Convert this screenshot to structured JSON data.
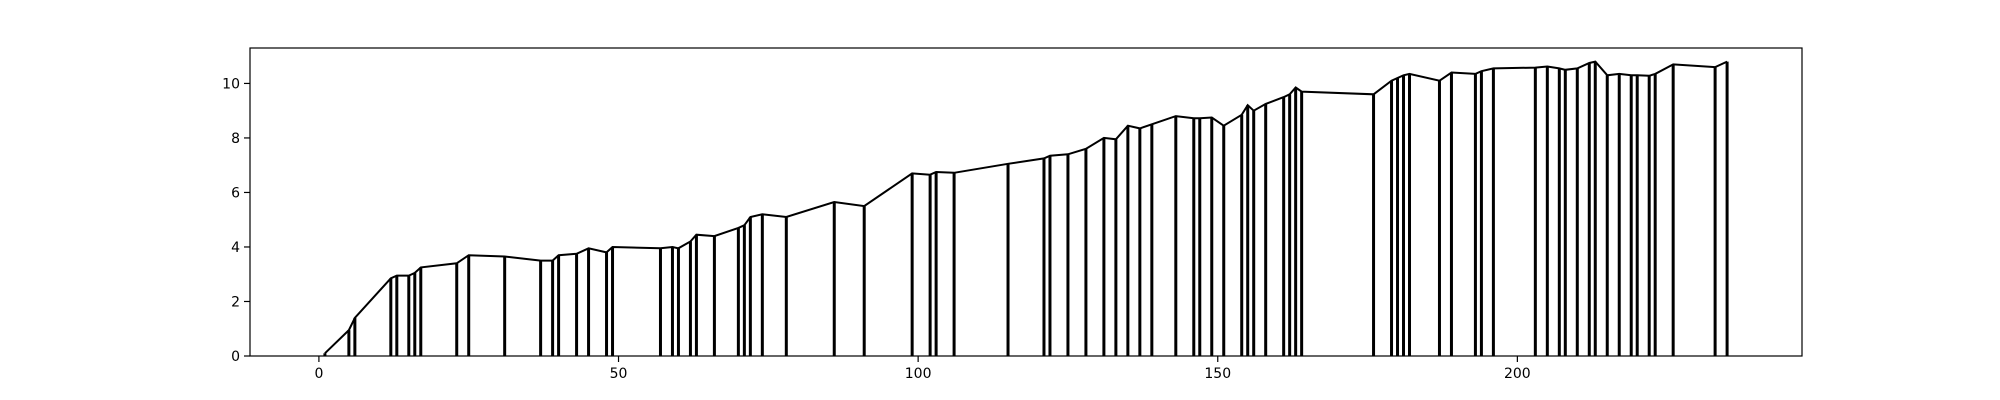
{
  "chart_data": {
    "type": "line",
    "title": "",
    "xlabel": "",
    "ylabel": "",
    "xlim": [
      -11.5,
      247.5
    ],
    "ylim": [
      0,
      11.3
    ],
    "x_ticks": [
      0,
      50,
      100,
      150,
      200
    ],
    "y_ticks": [
      0,
      2,
      4,
      6,
      8,
      10
    ],
    "x_tick_labels": [
      "0",
      "50",
      "100",
      "150",
      "200"
    ],
    "y_tick_labels": [
      "0",
      "2",
      "4",
      "6",
      "8",
      "10"
    ],
    "grid": false,
    "legend": "none",
    "line_color": "#000000",
    "vertical_drops": true,
    "series": [
      {
        "x": [
          1,
          5,
          6,
          12,
          13,
          15,
          16,
          17,
          23,
          25,
          31,
          37,
          39,
          40,
          43,
          45,
          48,
          49,
          57,
          59,
          60,
          62,
          63,
          66,
          70,
          71,
          72,
          74,
          78,
          86,
          91,
          99,
          102,
          103,
          106,
          115,
          121,
          122,
          125,
          128,
          131,
          133,
          135,
          137,
          139,
          143,
          146,
          147,
          149,
          151,
          154,
          155,
          156,
          158,
          161,
          162,
          163,
          164,
          176,
          179,
          180,
          181,
          182,
          187,
          189,
          193,
          194,
          196,
          203,
          205,
          207,
          208,
          210,
          212,
          213,
          215,
          217,
          219,
          220,
          222,
          223,
          226,
          233,
          235
        ],
        "y": [
          0.1,
          0.95,
          1.4,
          2.85,
          2.95,
          2.95,
          3.05,
          3.25,
          3.4,
          3.7,
          3.65,
          3.5,
          3.5,
          3.7,
          3.75,
          3.95,
          3.8,
          4.0,
          3.95,
          4.0,
          3.95,
          4.2,
          4.45,
          4.4,
          4.7,
          4.8,
          5.1,
          5.2,
          5.1,
          5.65,
          5.5,
          6.7,
          6.65,
          6.75,
          6.72,
          7.05,
          7.25,
          7.35,
          7.4,
          7.6,
          8.0,
          7.95,
          8.45,
          8.35,
          8.5,
          8.8,
          8.72,
          8.72,
          8.75,
          8.45,
          8.85,
          9.2,
          9.0,
          9.25,
          9.5,
          9.6,
          9.85,
          9.7,
          9.6,
          10.1,
          10.2,
          10.3,
          10.35,
          10.1,
          10.4,
          10.35,
          10.45,
          10.55,
          10.58,
          10.62,
          10.55,
          10.5,
          10.55,
          10.75,
          10.8,
          10.3,
          10.35,
          10.3,
          10.3,
          10.28,
          10.35,
          10.7,
          10.6,
          10.8
        ]
      }
    ]
  }
}
